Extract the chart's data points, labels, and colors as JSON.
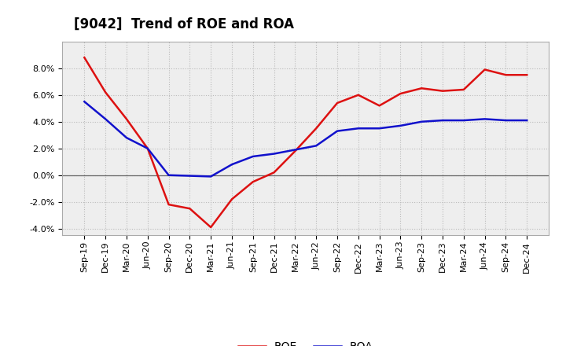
{
  "title": "[9042]  Trend of ROE and ROA",
  "x_labels": [
    "Sep-19",
    "Dec-19",
    "Mar-20",
    "Jun-20",
    "Sep-20",
    "Dec-20",
    "Mar-21",
    "Jun-21",
    "Sep-21",
    "Dec-21",
    "Mar-22",
    "Jun-22",
    "Sep-22",
    "Dec-22",
    "Mar-23",
    "Jun-23",
    "Sep-23",
    "Dec-23",
    "Mar-24",
    "Jun-24",
    "Sep-24",
    "Dec-24"
  ],
  "roe": [
    8.8,
    6.2,
    4.2,
    2.0,
    -2.2,
    -2.5,
    -3.9,
    -1.8,
    -0.5,
    0.2,
    1.8,
    3.5,
    5.4,
    6.0,
    5.2,
    6.1,
    6.5,
    6.3,
    6.4,
    7.9,
    7.5,
    7.5
  ],
  "roa": [
    5.5,
    4.2,
    2.8,
    2.0,
    0.0,
    -0.05,
    -0.1,
    0.8,
    1.4,
    1.6,
    1.9,
    2.2,
    3.3,
    3.5,
    3.5,
    3.7,
    4.0,
    4.1,
    4.1,
    4.2,
    4.1,
    4.1
  ],
  "roe_color": "#dd1111",
  "roa_color": "#1111cc",
  "ylim": [
    -4.5,
    10.0
  ],
  "yticks": [
    -4.0,
    -2.0,
    0.0,
    2.0,
    4.0,
    6.0,
    8.0
  ],
  "background_color": "#ffffff",
  "plot_bg_color": "#eeeeee",
  "grid_color": "#bbbbbb",
  "title_fontsize": 12,
  "legend_fontsize": 10,
  "tick_fontsize": 8,
  "line_width": 1.8
}
